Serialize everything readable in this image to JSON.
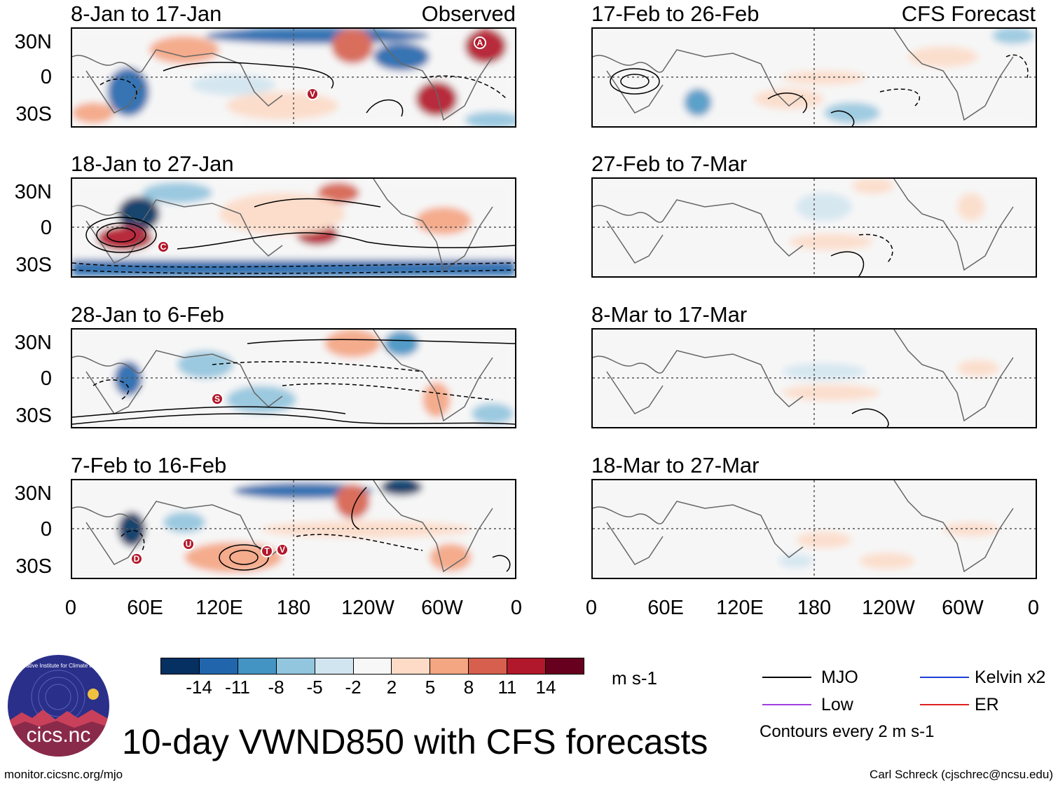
{
  "headers": {
    "left_tag": "Observed",
    "right_tag": "CFS Forecast"
  },
  "panels": [
    {
      "date_range": "8-Jan to 17-Jan"
    },
    {
      "date_range": "17-Feb to 26-Feb"
    },
    {
      "date_range": "18-Jan to 27-Jan"
    },
    {
      "date_range": "27-Feb to 7-Mar"
    },
    {
      "date_range": "28-Jan to 6-Feb"
    },
    {
      "date_range": "8-Mar to 17-Mar"
    },
    {
      "date_range": "7-Feb to 16-Feb"
    },
    {
      "date_range": "18-Mar to 27-Mar"
    }
  ],
  "lat_labels": [
    "30N",
    "0",
    "30S"
  ],
  "lon_labels": [
    "0",
    "60E",
    "120E",
    "180",
    "120W",
    "60W",
    "0"
  ],
  "colorbar": {
    "labels": [
      "-14",
      "-11",
      "-8",
      "-5",
      "-2",
      "2",
      "5",
      "8",
      "11",
      "14"
    ],
    "colors": [
      "#053061",
      "#2166ac",
      "#4393c3",
      "#92c5de",
      "#d1e5f0",
      "#f7f7f7",
      "#fddbc7",
      "#f4a582",
      "#d6604d",
      "#b2182b",
      "#67001f"
    ],
    "units": "m s-1"
  },
  "legend": {
    "items": [
      {
        "label": "MJO",
        "color": "#000000"
      },
      {
        "label": "Kelvin x2",
        "color": "#1f3fd6"
      },
      {
        "label": "Low",
        "color": "#a040e0"
      },
      {
        "label": "ER",
        "color": "#e02020"
      }
    ],
    "note": "Contours every 2 m s-1"
  },
  "storm_markers": [
    {
      "panel": 0,
      "letter": "A"
    },
    {
      "panel": 0,
      "letter": "V"
    },
    {
      "panel": 2,
      "letter": "C"
    },
    {
      "panel": 4,
      "letter": "S"
    },
    {
      "panel": 6,
      "letter": "U"
    },
    {
      "panel": 6,
      "letter": "D"
    },
    {
      "panel": 6,
      "letter": "T"
    },
    {
      "panel": 6,
      "letter": "V"
    }
  ],
  "logo_text": "cics.nc",
  "logo_ring_text": "Cooperative Institute for Climate and Satellites",
  "main_title": "10-day VWND850 with CFS forecasts",
  "footer_left": "monitor.cicsnc.org/mjo",
  "footer_right": "Carl Schreck (cjschrec@ncsu.edu)"
}
